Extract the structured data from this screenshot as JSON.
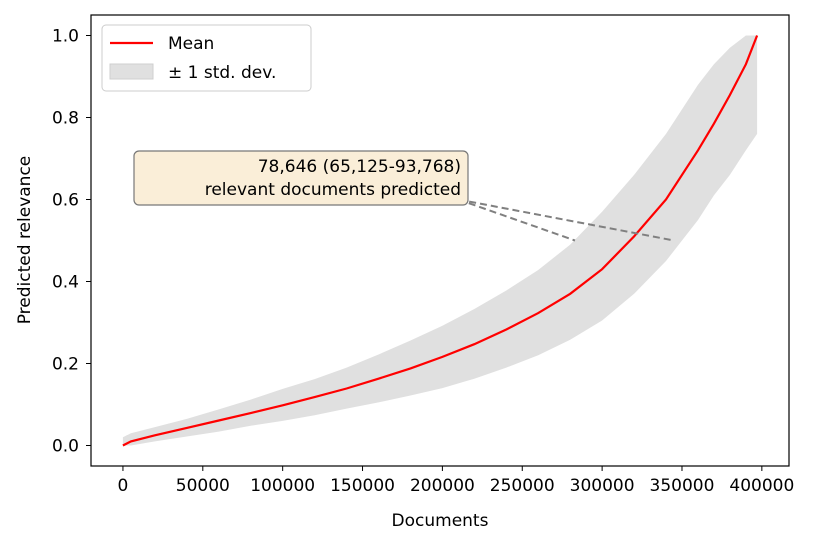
{
  "chart_data": {
    "type": "area",
    "xlabel": "Documents",
    "ylabel": "Predicted relevance",
    "xlim": [
      -20000,
      417000
    ],
    "ylim": [
      -0.05,
      1.05
    ],
    "xticks": [
      0,
      50000,
      100000,
      150000,
      200000,
      250000,
      300000,
      350000,
      400000
    ],
    "xtick_labels": [
      "0",
      "50000",
      "100000",
      "150000",
      "200000",
      "250000",
      "300000",
      "350000",
      "400000"
    ],
    "yticks": [
      0.0,
      0.2,
      0.4,
      0.6,
      0.8,
      1.0
    ],
    "ytick_labels": [
      "0.0",
      "0.2",
      "0.4",
      "0.6",
      "0.8",
      "1.0"
    ],
    "grid": false,
    "legend_position": "top-left",
    "series": [
      {
        "name": "Mean",
        "color": "#ff0000",
        "x": [
          0,
          5000,
          20000,
          40000,
          60000,
          80000,
          100000,
          120000,
          140000,
          160000,
          180000,
          200000,
          220000,
          240000,
          260000,
          280000,
          300000,
          320000,
          340000,
          360000,
          370000,
          380000,
          390000,
          397000
        ],
        "y": [
          0.0,
          0.01,
          0.025,
          0.043,
          0.061,
          0.079,
          0.098,
          0.118,
          0.139,
          0.163,
          0.188,
          0.216,
          0.247,
          0.283,
          0.323,
          0.37,
          0.43,
          0.51,
          0.6,
          0.72,
          0.785,
          0.855,
          0.93,
          1.0
        ]
      },
      {
        "name": "± 1 std. dev.",
        "color": "#e0e0e0",
        "x": [
          0,
          5000,
          20000,
          40000,
          60000,
          80000,
          100000,
          120000,
          140000,
          160000,
          180000,
          200000,
          220000,
          240000,
          260000,
          280000,
          300000,
          320000,
          340000,
          360000,
          370000,
          380000,
          390000,
          397000
        ],
        "lower": [
          0.0,
          0.0,
          0.01,
          0.022,
          0.034,
          0.048,
          0.06,
          0.074,
          0.09,
          0.105,
          0.122,
          0.14,
          0.163,
          0.19,
          0.22,
          0.258,
          0.305,
          0.37,
          0.45,
          0.55,
          0.61,
          0.66,
          0.72,
          0.76
        ],
        "upper": [
          0.02,
          0.03,
          0.045,
          0.065,
          0.088,
          0.112,
          0.138,
          0.162,
          0.19,
          0.222,
          0.256,
          0.292,
          0.333,
          0.378,
          0.428,
          0.49,
          0.57,
          0.66,
          0.76,
          0.88,
          0.93,
          0.97,
          1.0,
          1.0
        ]
      }
    ],
    "annotation": {
      "line1": "78,646 (65,125-93,768)",
      "line2": "relevant documents predicted",
      "box_color": "#faeed8",
      "arrow_color": "#808080",
      "anchor": [
        210000,
        0.6
      ],
      "targets": [
        [
          283000,
          0.5
        ],
        [
          345000,
          0.5
        ]
      ]
    }
  }
}
